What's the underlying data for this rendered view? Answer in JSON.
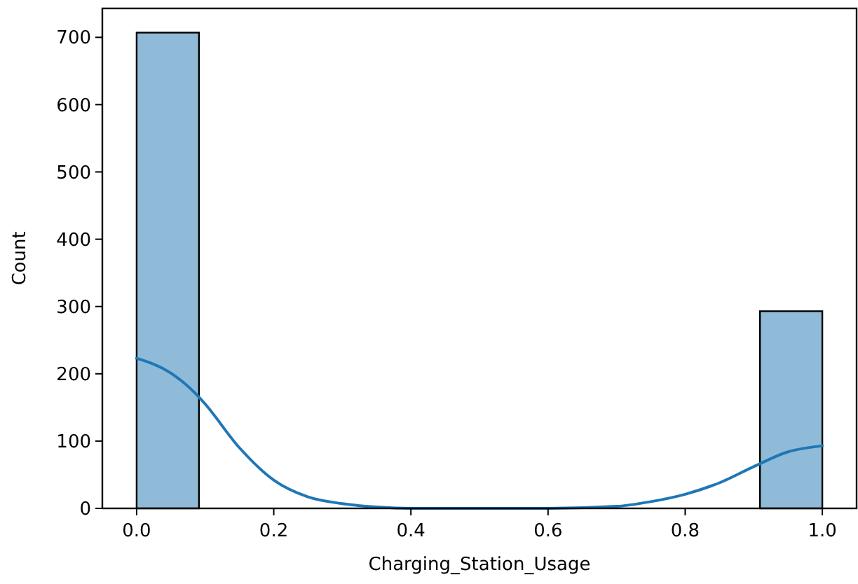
{
  "chart_data": {
    "type": "histogram",
    "xlabel": "Charging_Station_Usage",
    "ylabel": "Count",
    "bins": [
      0,
      0.0909,
      0.1818,
      0.2727,
      0.3636,
      0.4545,
      0.5455,
      0.6364,
      0.7273,
      0.8182,
      0.9091,
      1
    ],
    "series": [
      {
        "color": "#8fbbd9",
        "values": [
          707,
          0,
          0,
          0,
          0,
          0,
          0,
          0,
          0,
          0,
          293
        ]
      },
      {
        "type": "line",
        "color": "#1f77b4",
        "x": [
          0,
          0.05,
          0.093,
          0.1,
          0.15,
          0.2,
          0.25,
          0.3,
          0.35,
          0.4,
          0.5,
          0.6,
          0.7,
          0.75,
          0.8,
          0.85,
          0.9,
          0.95,
          1
        ],
        "values": [
          223,
          201,
          163,
          155,
          90,
          42,
          17,
          7,
          2,
          0,
          0,
          0,
          3,
          10,
          21,
          38,
          62,
          84,
          93
        ]
      }
    ],
    "xlim": [
      -0.05,
      1.05
    ],
    "xticks": [
      {
        "value": 0,
        "label": "0.0"
      },
      {
        "value": 0.2,
        "label": "0.2"
      },
      {
        "value": 0.4,
        "label": "0.4"
      },
      {
        "value": 0.6,
        "label": "0.6"
      },
      {
        "value": 0.8,
        "label": "0.8"
      },
      {
        "value": 1,
        "label": "1.0"
      }
    ],
    "ylim": [
      0,
      743
    ],
    "yticks": [
      0,
      100,
      200,
      300,
      400,
      500,
      600,
      700
    ],
    "grid": false
  }
}
